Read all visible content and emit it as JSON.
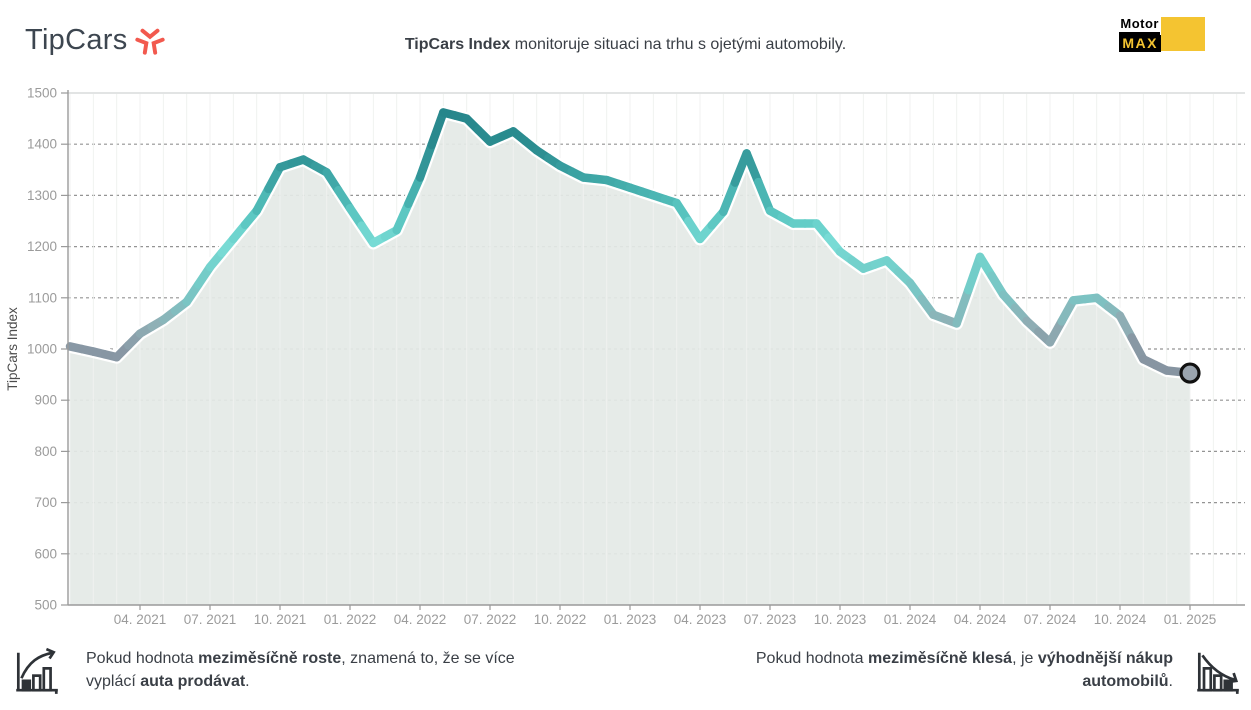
{
  "header": {
    "logo_text": "TipCars",
    "brand_color": "#f2594e",
    "title_segments": [
      {
        "t": "TipCars Index",
        "b": true
      },
      {
        "t": " monitoruje situaci na trhu s ojetými automobily.",
        "b": false
      }
    ],
    "motormax": {
      "line1": "Motor",
      "line2": "MAX",
      "yellow": "#f4c431"
    }
  },
  "chart_data": {
    "type": "area",
    "title": "TipCars Index",
    "ylabel": "TipCars Index",
    "xlabel": "",
    "ylim": [
      500,
      1500
    ],
    "grid": true,
    "x_start": "01. 2021",
    "x_end": "01. 2025",
    "x_interval": "monthly",
    "yticks": [
      500,
      600,
      700,
      800,
      900,
      1000,
      1100,
      1200,
      1300,
      1400,
      1500
    ],
    "x_tick_labels": [
      "04. 2021",
      "07. 2021",
      "10. 2021",
      "01. 2022",
      "04. 2022",
      "07. 2022",
      "10. 2022",
      "01. 2023",
      "04. 2023",
      "07. 2023",
      "10. 2023",
      "01. 2024",
      "04. 2024",
      "07. 2024",
      "10. 2024",
      "01. 2025"
    ],
    "x_tick_indices": [
      3,
      6,
      9,
      12,
      15,
      18,
      21,
      24,
      27,
      30,
      33,
      36,
      39,
      42,
      45,
      48
    ],
    "series": [
      {
        "name": "TipCars Index",
        "values": [
          1005,
          995,
          984,
          1030,
          1057,
          1092,
          1160,
          1215,
          1270,
          1355,
          1370,
          1345,
          1275,
          1207,
          1232,
          1335,
          1462,
          1450,
          1405,
          1425,
          1388,
          1358,
          1335,
          1330,
          1315,
          1300,
          1285,
          1215,
          1268,
          1382,
          1270,
          1245,
          1245,
          1190,
          1157,
          1173,
          1129,
          1067,
          1050,
          1180,
          1106,
          1055,
          1013,
          1095,
          1100,
          1065,
          980,
          958,
          953
        ]
      }
    ],
    "last_value": 953,
    "style": {
      "area_fill": "#e4eae6",
      "grid_color": "#949494",
      "vgrid_color": "#f0f2f0",
      "axis_color": "#9a9a9a",
      "tick_label_color": "#9b9b9b",
      "ylabel_color": "#4c4c4c",
      "marker_fill": "#9aa4ae",
      "marker_stroke": "#111111",
      "color_stops": [
        [
          950,
          "#8694a1"
        ],
        [
          1000,
          "#8897a4"
        ],
        [
          1050,
          "#8fb0b6"
        ],
        [
          1100,
          "#7cc3c3"
        ],
        [
          1155,
          "#72cfca"
        ],
        [
          1210,
          "#79dcd6"
        ],
        [
          1265,
          "#58c4bf"
        ],
        [
          1320,
          "#43acab"
        ],
        [
          1380,
          "#2d8f92"
        ],
        [
          1470,
          "#25858a"
        ]
      ]
    }
  },
  "footer": {
    "icon_color": "#2e3237",
    "left": {
      "icon": "growth-chart-icon",
      "segments": [
        {
          "t": "Pokud hodnota ",
          "b": false
        },
        {
          "t": "meziměsíčně roste",
          "b": true
        },
        {
          "t": ", znamená to, že se více vyplácí ",
          "b": false
        },
        {
          "t": "auta prodávat",
          "b": true
        },
        {
          "t": ".",
          "b": false
        }
      ]
    },
    "right": {
      "icon": "decline-chart-icon",
      "segments": [
        {
          "t": "Pokud hodnota ",
          "b": false
        },
        {
          "t": "meziměsíčně klesá",
          "b": true
        },
        {
          "t": ", je ",
          "b": false
        },
        {
          "t": "výhodnější nákup automobilů",
          "b": true
        },
        {
          "t": ".",
          "b": false
        }
      ]
    }
  }
}
